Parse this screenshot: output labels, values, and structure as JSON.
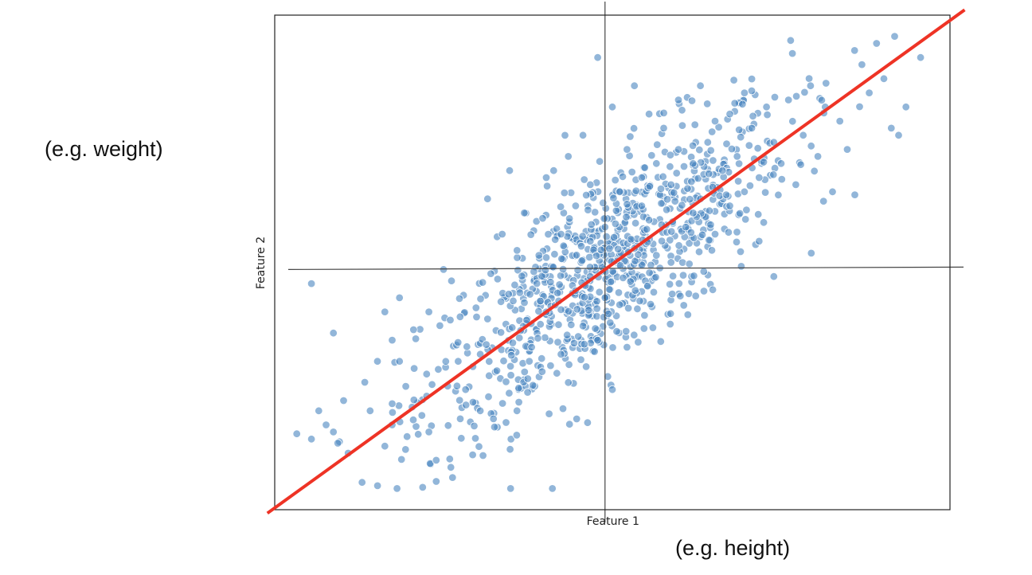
{
  "annotations": {
    "y_example": "(e.g. weight)",
    "x_example": "(e.g. height)"
  },
  "chart_data": {
    "type": "scatter",
    "title": "",
    "xlabel": "Feature 1",
    "ylabel": "Feature 2",
    "xlim": [
      -4.5,
      4.7
    ],
    "ylim": [
      -3.4,
      3.6
    ],
    "grid": false,
    "axes_lines_through_origin": true,
    "ticks_shown": false,
    "point_color": "#4a86c0",
    "line_color": "#ee3325",
    "points_approx_count": 1000,
    "points": [
      [
        -4.0,
        -0.2
      ],
      [
        -3.7,
        -0.9
      ],
      [
        -4.0,
        -2.4
      ],
      [
        -3.9,
        -2.0
      ],
      [
        -3.7,
        -2.3
      ],
      [
        -3.8,
        -2.2
      ],
      [
        -3.5,
        -2.6
      ],
      [
        -3.2,
        -2.0
      ],
      [
        -3.0,
        -2.5
      ],
      [
        -2.9,
        -2.2
      ],
      [
        -2.9,
        -1.9
      ],
      [
        -3.1,
        -1.3
      ],
      [
        -2.9,
        -1.0
      ],
      [
        -3.0,
        -0.6
      ],
      [
        -2.8,
        -0.4
      ],
      [
        -2.8,
        -1.3
      ],
      [
        -2.6,
        -1.4
      ],
      [
        -2.4,
        -0.6
      ],
      [
        -2.2,
        0.0
      ],
      [
        -2.4,
        -2.3
      ],
      [
        -2.3,
        -2.7
      ],
      [
        -2.3,
        -3.0
      ],
      [
        -2.1,
        -2.8
      ],
      [
        -2.0,
        -1.3
      ],
      [
        -1.9,
        -1.7
      ],
      [
        -1.7,
        -2.0
      ],
      [
        -1.7,
        -1.2
      ],
      [
        -1.6,
        -0.7
      ],
      [
        -1.6,
        1.0
      ],
      [
        -1.4,
        0.5
      ],
      [
        -1.2,
        -2.0
      ],
      [
        -1.3,
        1.4
      ],
      [
        -1.1,
        0.8
      ],
      [
        -1.0,
        -1.1
      ],
      [
        -0.9,
        0.2
      ],
      [
        -0.8,
        1.3
      ],
      [
        -0.8,
        -0.6
      ],
      [
        -0.7,
        1.4
      ],
      [
        -0.6,
        0.5
      ],
      [
        -0.6,
        -1.2
      ],
      [
        -0.5,
        1.6
      ],
      [
        -0.5,
        -1.6
      ],
      [
        -0.4,
        0.9
      ],
      [
        -0.4,
        -0.3
      ],
      [
        -0.3,
        -0.8
      ],
      [
        -0.3,
        1.9
      ],
      [
        -0.2,
        0.4
      ],
      [
        -0.2,
        1.2
      ],
      [
        -0.1,
        3.0
      ],
      [
        -0.1,
        -1.0
      ],
      [
        0.0,
        0.6
      ],
      [
        0.0,
        -0.4
      ],
      [
        0.1,
        2.3
      ],
      [
        0.1,
        -1.7
      ],
      [
        0.2,
        1.1
      ],
      [
        0.2,
        -0.5
      ],
      [
        0.3,
        1.7
      ],
      [
        0.3,
        -1.1
      ],
      [
        0.4,
        2.6
      ],
      [
        0.4,
        0.3
      ],
      [
        0.5,
        1.3
      ],
      [
        0.5,
        0.9
      ],
      [
        0.6,
        2.2
      ],
      [
        0.6,
        0.7
      ],
      [
        0.7,
        1.5
      ],
      [
        0.7,
        0.2
      ],
      [
        0.8,
        2.0
      ],
      [
        0.9,
        1.2
      ],
      [
        0.9,
        0.1
      ],
      [
        1.0,
        2.4
      ],
      [
        1.0,
        1.7
      ],
      [
        1.1,
        0.6
      ],
      [
        1.2,
        1.5
      ],
      [
        1.2,
        0.8
      ],
      [
        1.3,
        2.6
      ],
      [
        1.3,
        1.0
      ],
      [
        1.4,
        1.8
      ],
      [
        1.5,
        2.1
      ],
      [
        1.5,
        0.5
      ],
      [
        1.6,
        1.4
      ],
      [
        1.7,
        2.2
      ],
      [
        1.7,
        0.9
      ],
      [
        1.8,
        1.6
      ],
      [
        1.9,
        2.5
      ],
      [
        1.9,
        1.1
      ],
      [
        2.0,
        2.0
      ],
      [
        2.1,
        1.3
      ],
      [
        2.1,
        0.4
      ],
      [
        2.2,
        2.3
      ],
      [
        2.3,
        1.8
      ],
      [
        2.3,
        -0.1
      ],
      [
        2.4,
        1.5
      ],
      [
        2.5,
        2.4
      ],
      [
        2.6,
        1.2
      ],
      [
        2.7,
        1.9
      ],
      [
        2.8,
        2.6
      ],
      [
        2.9,
        1.6
      ],
      [
        3.0,
        2.3
      ],
      [
        3.1,
        1.1
      ],
      [
        3.2,
        2.1
      ],
      [
        3.3,
        1.7
      ],
      [
        3.4,
        3.1
      ],
      [
        3.5,
        2.9
      ],
      [
        3.6,
        2.5
      ],
      [
        3.7,
        3.2
      ],
      [
        3.8,
        2.7
      ],
      [
        3.9,
        2.0
      ],
      [
        4.0,
        1.9
      ],
      [
        4.1,
        2.3
      ],
      [
        4.3,
        3.0
      ]
    ],
    "fit_line": {
      "label": "",
      "slope": 0.75,
      "intercept": 0.0,
      "x_range": [
        -4.6,
        4.9
      ]
    }
  }
}
